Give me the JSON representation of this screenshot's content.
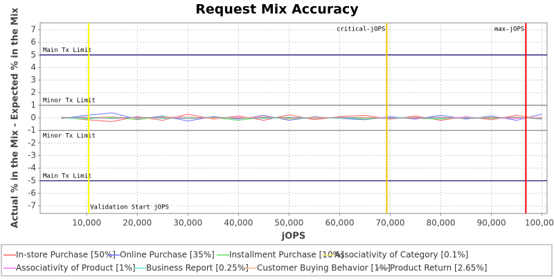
{
  "chart_data": {
    "type": "line",
    "title": "Request Mix Accuracy",
    "x_label": "jOPS",
    "y_label": "Actual % in the Mix - Expected % in the Mix",
    "xlim": [
      800,
      101000
    ],
    "ylim": [
      -7.6,
      7.55
    ],
    "xticks": [
      {
        "value": 10000,
        "label": "10,000"
      },
      {
        "value": 20000,
        "label": "20,000"
      },
      {
        "value": 30000,
        "label": "30,000"
      },
      {
        "value": 40000,
        "label": "40,000"
      },
      {
        "value": 50000,
        "label": "50,000"
      },
      {
        "value": 60000,
        "label": "60,000"
      },
      {
        "value": 70000,
        "label": "70,000"
      },
      {
        "value": 80000,
        "label": "80,000"
      },
      {
        "value": 90000,
        "label": "90,000"
      },
      {
        "value": 100000,
        "label": "100,000"
      }
    ],
    "yticks": [
      -7,
      -6,
      -5,
      -4,
      -3,
      -2,
      -1,
      0,
      1,
      2,
      3,
      4,
      5,
      6,
      7
    ],
    "grid": true,
    "x": [
      5000,
      10000,
      15000,
      20000,
      25000,
      30000,
      35000,
      40000,
      45000,
      50000,
      55000,
      60000,
      65000,
      70000,
      75000,
      80000,
      85000,
      90000,
      95000,
      100000
    ],
    "series": [
      {
        "name": "In-store Purchase [50%]",
        "color": "#ff6060",
        "values": [
          0.05,
          -0.15,
          -0.3,
          0.1,
          -0.2,
          0.3,
          -0.1,
          0.15,
          -0.2,
          0.25,
          -0.15,
          0.1,
          0.2,
          -0.1,
          0.15,
          -0.2,
          0.1,
          -0.15,
          0.2,
          -0.1
        ]
      },
      {
        "name": "Online Purchase [35%]",
        "color": "#7070ff",
        "values": [
          -0.05,
          0.2,
          0.4,
          -0.1,
          0.15,
          -0.25,
          0.1,
          -0.1,
          0.2,
          -0.2,
          0.1,
          -0.05,
          -0.15,
          0.1,
          -0.1,
          0.2,
          -0.1,
          0.15,
          -0.2,
          0.3
        ]
      },
      {
        "name": "Installment Purchase [10%]",
        "color": "#60e060",
        "values": [
          0.0,
          -0.1,
          0.05,
          -0.15,
          0.1,
          -0.05,
          0.0,
          -0.2,
          0.05,
          -0.1,
          0.05,
          0.0,
          -0.1,
          0.05,
          -0.05,
          -0.1,
          0.05,
          -0.05,
          0.0,
          -0.05
        ]
      },
      {
        "name": "Associativity of Category [0.1%]",
        "color": "#f0f060",
        "values": [
          0.0,
          0.0,
          0.0,
          0.0,
          0.0,
          0.0,
          0.0,
          0.0,
          0.0,
          0.0,
          0.0,
          0.0,
          0.0,
          0.0,
          0.0,
          0.0,
          0.0,
          0.0,
          0.0,
          0.0
        ]
      },
      {
        "name": "Associativity of Product [1%]",
        "color": "#ff70ff",
        "values": [
          0.0,
          0.05,
          -0.05,
          0.0,
          0.05,
          0.0,
          -0.05,
          0.05,
          0.0,
          -0.05,
          0.05,
          0.0,
          0.0,
          0.05,
          -0.05,
          0.0,
          0.05,
          0.0,
          -0.05,
          0.0
        ]
      },
      {
        "name": "Business Report [0.25%]",
        "color": "#60e0e0",
        "values": [
          0.0,
          -0.05,
          0.0,
          0.05,
          -0.05,
          0.0,
          0.05,
          0.0,
          -0.05,
          0.0,
          0.05,
          -0.05,
          0.0,
          0.0,
          0.05,
          -0.05,
          0.0,
          0.05,
          0.0,
          -0.05
        ]
      },
      {
        "name": "Customer Buying Behavior [1%]",
        "color": "#ffb090",
        "values": [
          0.05,
          0.0,
          0.1,
          -0.05,
          0.05,
          0.1,
          -0.05,
          0.0,
          0.1,
          -0.05,
          0.05,
          0.0,
          0.05,
          -0.05,
          0.05,
          0.0,
          -0.05,
          0.05,
          0.0,
          0.05
        ]
      },
      {
        "name": "Product Return [2.65%]",
        "color": "#909090",
        "values": [
          0.0,
          0.05,
          -0.05,
          0.05,
          0.0,
          -0.05,
          0.05,
          -0.05,
          0.0,
          0.05,
          -0.05,
          0.05,
          0.0,
          -0.05,
          0.0,
          0.05,
          -0.05,
          0.0,
          0.05,
          -0.1
        ]
      }
    ],
    "reference_lines": {
      "horizontal": [
        {
          "label": "Main Tx Limit",
          "value": 5,
          "color": "#000066"
        },
        {
          "label": "Minor Tx Limit",
          "value": 1,
          "color": "#808080"
        },
        {
          "label": "Minor Tx Limit",
          "value": -1,
          "color": "#808080"
        },
        {
          "label": "Main Tx Limit",
          "value": -5,
          "color": "#000066"
        }
      ],
      "vertical": [
        {
          "label": "Validation Start jOPS",
          "value": 10400,
          "color": "#ffff00"
        },
        {
          "label": "critical-jOPS",
          "value": 69300,
          "color": "#f0c000"
        },
        {
          "label": "max-jOPS",
          "value": 96800,
          "color": "#ff0000"
        }
      ]
    }
  }
}
